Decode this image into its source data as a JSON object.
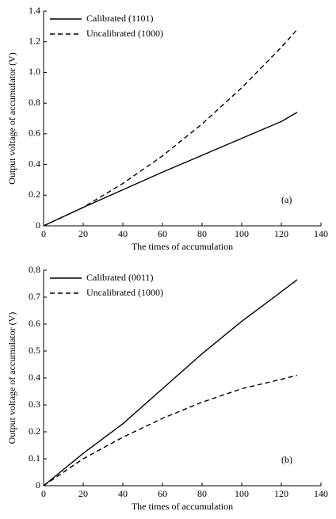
{
  "chart_data": [
    {
      "type": "line",
      "annotation": "(a)",
      "x_label": "The times of accumulation",
      "y_label": "Output voltage of accumulator (V)",
      "x": [
        0,
        20,
        40,
        60,
        80,
        100,
        120,
        128
      ],
      "series": [
        {
          "name": "Calibrated (1101)",
          "color": "#000000",
          "dash": "solid",
          "values": [
            0,
            0.12,
            0.235,
            0.35,
            0.46,
            0.57,
            0.68,
            0.74
          ]
        },
        {
          "name": "Uncalibrated (1000)",
          "color": "#000000",
          "dash": "dashed",
          "values": [
            0,
            0.12,
            0.276,
            0.456,
            0.664,
            0.9,
            1.164,
            1.28
          ]
        }
      ],
      "xlim": [
        0,
        140
      ],
      "xticks": [
        0,
        20,
        40,
        60,
        80,
        100,
        120,
        140
      ],
      "ylim": [
        0,
        1.4
      ],
      "yticks": [
        0,
        0.2,
        0.4,
        0.6,
        0.8,
        {
          "value": 1,
          "label": "1.0"
        },
        1.2,
        1.4
      ]
    },
    {
      "type": "line",
      "annotation": "(b)",
      "x_label": "The times of accumulation",
      "y_label": "Output voltage of accumulator (V)",
      "x": [
        0,
        20,
        40,
        60,
        80,
        100,
        120,
        128
      ],
      "series": [
        {
          "name": "Calibrated (0011)",
          "color": "#000000",
          "dash": "solid",
          "values": [
            0,
            0.12,
            0.23,
            0.36,
            0.49,
            0.61,
            0.72,
            0.765
          ]
        },
        {
          "name": "Uncalibrated (1000)",
          "color": "#000000",
          "dash": "dashed",
          "values": [
            0,
            0.1,
            0.18,
            0.25,
            0.31,
            0.36,
            0.395,
            0.41
          ]
        }
      ],
      "xlim": [
        0,
        140
      ],
      "xticks": [
        0,
        20,
        40,
        60,
        80,
        100,
        120,
        140
      ],
      "ylim": [
        0,
        0.8
      ],
      "yticks": [
        0,
        0.1,
        0.2,
        0.3,
        0.4,
        0.5,
        0.6,
        0.7,
        0.8
      ]
    }
  ]
}
